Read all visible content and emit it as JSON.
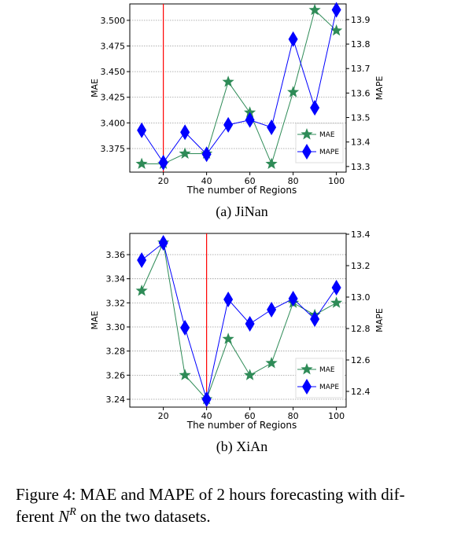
{
  "chart_data": [
    {
      "type": "line",
      "subcaption": "(a) JiNan",
      "xlabel": "The number of Regions",
      "ylabel": "MAE",
      "y2label": "MAPE",
      "x": [
        10,
        20,
        30,
        40,
        50,
        60,
        70,
        80,
        90,
        100
      ],
      "xlim": [
        4.5,
        104.5
      ],
      "xticks": [
        20,
        40,
        60,
        80,
        100
      ],
      "ylim": [
        3.352,
        3.516
      ],
      "yticks": [
        {
          "value": 3.375,
          "label": "3.375"
        },
        {
          "value": 3.4,
          "label": "3.400"
        },
        {
          "value": 3.425,
          "label": "3.425"
        },
        {
          "value": 3.45,
          "label": "3.450"
        },
        {
          "value": 3.475,
          "label": "3.475"
        },
        {
          "value": 3.5,
          "label": "3.500"
        }
      ],
      "y2lim": [
        13.277,
        13.964
      ],
      "y2ticks": [
        13.3,
        13.4,
        13.5,
        13.6,
        13.7,
        13.8,
        13.9
      ],
      "grid": true,
      "legend": "lower right",
      "reference_line": {
        "x": 20,
        "color": "#ff0000"
      },
      "series": [
        {
          "name": "MAE",
          "color": "#2e8b57",
          "marker": "star",
          "values": [
            3.36,
            3.36,
            3.37,
            3.37,
            3.44,
            3.41,
            3.36,
            3.43,
            3.51,
            3.49
          ]
        },
        {
          "name": "MAPE",
          "color": "#0000ff",
          "marker": "diamond",
          "axis": "y2",
          "values": [
            13.448,
            13.316,
            13.44,
            13.35,
            13.47,
            13.49,
            13.46,
            13.82,
            13.54,
            13.94
          ]
        }
      ]
    },
    {
      "type": "line",
      "subcaption": "(b) XiAn",
      "xlabel": "The number of Regions",
      "ylabel": "MAE",
      "y2label": "MAPE",
      "x": [
        10,
        20,
        30,
        40,
        50,
        60,
        70,
        80,
        90,
        100
      ],
      "xlim": [
        4.5,
        104.5
      ],
      "xticks": [
        20,
        40,
        60,
        80,
        100
      ],
      "ylim": [
        3.2335,
        3.3776
      ],
      "yticks": [
        3.24,
        3.26,
        3.28,
        {
          "value": 3.3,
          "label": "3.30"
        },
        3.32,
        3.34,
        3.36
      ],
      "y2lim": [
        12.3,
        13.405
      ],
      "y2ticks": [
        12.4,
        12.6,
        12.8,
        {
          "value": 13,
          "label": "13.0"
        },
        13.2,
        13.4
      ],
      "grid": true,
      "legend": "lower right",
      "reference_line": {
        "x": 40,
        "color": "#ff0000"
      },
      "series": [
        {
          "name": "MAE",
          "color": "#2e8b57",
          "marker": "star",
          "values": [
            3.33,
            3.37,
            3.26,
            3.24,
            3.29,
            3.26,
            3.27,
            3.32,
            3.31,
            3.32
          ]
        },
        {
          "name": "MAPE",
          "color": "#0000ff",
          "marker": "diamond",
          "axis": "y2",
          "values": [
            13.235,
            13.345,
            12.805,
            12.35,
            12.985,
            12.83,
            12.92,
            12.99,
            12.86,
            13.06
          ]
        }
      ]
    }
  ],
  "caption": {
    "line1": "Figure 4: MAE and MAPE of 2 hours forecasting with dif-",
    "before": "ferent ",
    "symbol": "N",
    "superscript": "R",
    "after": " on the two datasets."
  }
}
